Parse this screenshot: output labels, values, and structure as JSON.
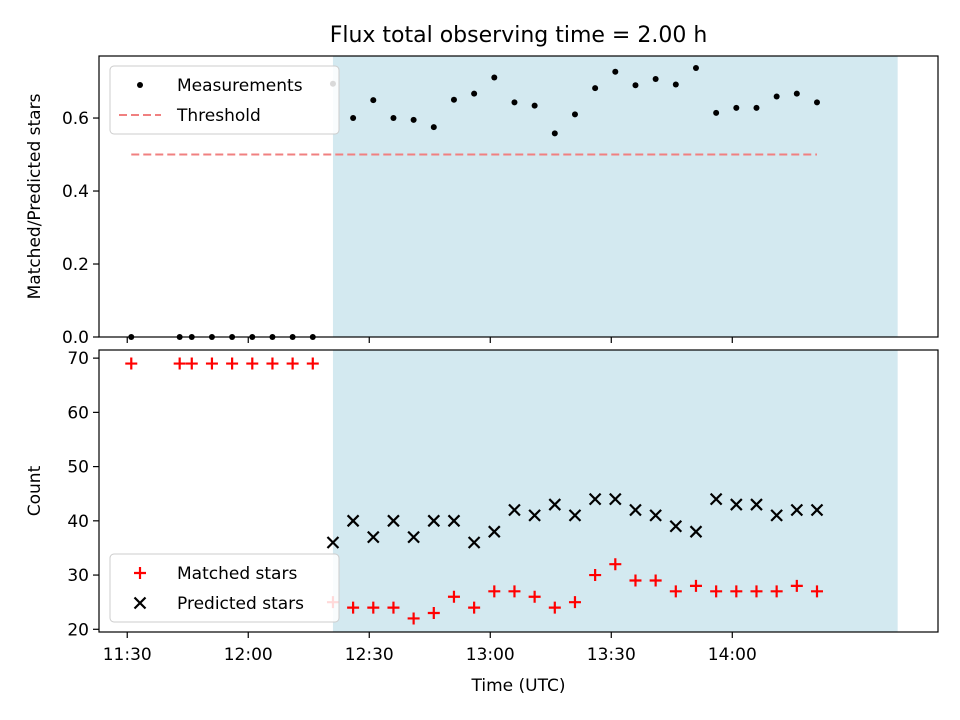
{
  "chart_data": [
    {
      "type": "scatter",
      "title": "Flux total observing time = 2.00 h",
      "xlabel": "",
      "ylabel": "Matched/Predicted stars",
      "ylim": [
        0,
        0.77
      ],
      "yticks": [
        "0.0",
        "0.2",
        "0.4",
        "0.6"
      ],
      "xticks": [
        "11:30",
        "12:00",
        "12:30",
        "13:00",
        "13:30",
        "14:00"
      ],
      "xlim": [
        "11:23",
        "14:51"
      ],
      "shaded_interval": [
        "12:21",
        "14:41"
      ],
      "shade_color": "#d3e9f0",
      "grid": false,
      "legend_position": "upper left",
      "series": [
        {
          "name": "Measurements",
          "marker": "dot",
          "color": "#000000",
          "x": [
            "11:31",
            "11:43",
            "11:46",
            "11:51",
            "11:56",
            "12:01",
            "12:06",
            "12:11",
            "12:16",
            "12:21",
            "12:26",
            "12:31",
            "12:36",
            "12:41",
            "12:46",
            "12:51",
            "12:56",
            "13:01",
            "13:06",
            "13:11",
            "13:16",
            "13:21",
            "13:26",
            "13:31",
            "13:36",
            "13:41",
            "13:46",
            "13:51",
            "13:56",
            "14:01",
            "14:06",
            "14:11",
            "14:16",
            "14:21"
          ],
          "y": [
            0.0,
            0.0,
            0.0,
            0.0,
            0.0,
            0.0,
            0.0,
            0.0,
            0.0,
            0.694,
            0.6,
            0.649,
            0.6,
            0.595,
            0.575,
            0.65,
            0.667,
            0.711,
            0.643,
            0.634,
            0.558,
            0.61,
            0.682,
            0.727,
            0.69,
            0.707,
            0.692,
            0.737,
            0.614,
            0.628,
            0.628,
            0.659,
            0.667,
            0.643
          ]
        },
        {
          "name": "Threshold",
          "marker": "dashed-line",
          "color": "#f08080",
          "x": [
            "11:31",
            "14:21"
          ],
          "y": [
            0.5,
            0.5
          ]
        }
      ]
    },
    {
      "type": "scatter",
      "title": "",
      "xlabel": "Time (UTC)",
      "ylabel": "Count",
      "ylim": [
        19.5,
        71.5
      ],
      "yticks": [
        "20",
        "30",
        "40",
        "50",
        "60",
        "70"
      ],
      "xticks": [
        "11:30",
        "12:00",
        "12:30",
        "13:00",
        "13:30",
        "14:00"
      ],
      "xlim": [
        "11:23",
        "14:51"
      ],
      "shaded_interval": [
        "12:21",
        "14:41"
      ],
      "shade_color": "#d3e9f0",
      "grid": false,
      "legend_position": "lower left",
      "series": [
        {
          "name": "Matched stars",
          "marker": "plus",
          "color": "#ff0000",
          "x": [
            "11:31",
            "11:43",
            "11:46",
            "11:51",
            "11:56",
            "12:01",
            "12:06",
            "12:11",
            "12:16",
            "12:21",
            "12:26",
            "12:31",
            "12:36",
            "12:41",
            "12:46",
            "12:51",
            "12:56",
            "13:01",
            "13:06",
            "13:11",
            "13:16",
            "13:21",
            "13:26",
            "13:31",
            "13:36",
            "13:41",
            "13:46",
            "13:51",
            "13:56",
            "14:01",
            "14:06",
            "14:11",
            "14:16",
            "14:21"
          ],
          "y": [
            69,
            69,
            69,
            69,
            69,
            69,
            69,
            69,
            69,
            25,
            24,
            24,
            24,
            22,
            23,
            26,
            24,
            27,
            27,
            26,
            24,
            25,
            30,
            32,
            29,
            29,
            27,
            28,
            27,
            27,
            27,
            27,
            28,
            27
          ]
        },
        {
          "name": "Predicted stars",
          "marker": "x",
          "color": "#000000",
          "x": [
            "12:21",
            "12:26",
            "12:31",
            "12:36",
            "12:41",
            "12:46",
            "12:51",
            "12:56",
            "13:01",
            "13:06",
            "13:11",
            "13:16",
            "13:21",
            "13:26",
            "13:31",
            "13:36",
            "13:41",
            "13:46",
            "13:51",
            "13:56",
            "14:01",
            "14:06",
            "14:11",
            "14:16",
            "14:21"
          ],
          "y": [
            36,
            40,
            37,
            40,
            37,
            40,
            40,
            36,
            38,
            42,
            41,
            43,
            41,
            44,
            44,
            42,
            41,
            39,
            38,
            44,
            43,
            43,
            41,
            42,
            42
          ]
        }
      ]
    }
  ]
}
